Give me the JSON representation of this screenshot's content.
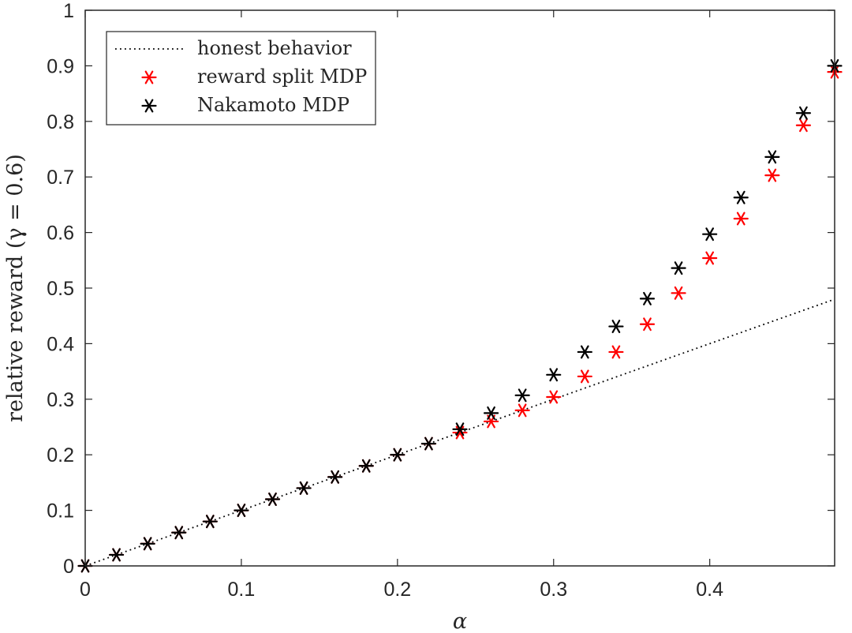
{
  "chart_data": {
    "type": "scatter",
    "xlabel": "α",
    "ylabel": "relative reward (γ = 0.6)",
    "xlim": [
      0,
      0.48
    ],
    "ylim": [
      0,
      1
    ],
    "xticks": [
      0,
      0.1,
      0.2,
      0.3,
      0.4
    ],
    "xtick_labels": [
      "0",
      "0.1",
      "0.2",
      "0.3",
      "0.4"
    ],
    "yticks": [
      0,
      0.1,
      0.2,
      0.3,
      0.4,
      0.5,
      0.6,
      0.7,
      0.8,
      0.9,
      1
    ],
    "ytick_labels": [
      "0",
      "0.1",
      "0.2",
      "0.3",
      "0.4",
      "0.5",
      "0.6",
      "0.7",
      "0.8",
      "0.9",
      "1"
    ],
    "legend_position": "top-left",
    "series": [
      {
        "name": "honest behavior",
        "style": "dotted-line",
        "color": "#000000",
        "x": [
          0,
          0.48
        ],
        "y": [
          0,
          0.48
        ]
      },
      {
        "name": "reward split MDP",
        "style": "asterisk",
        "color": "#ff0000",
        "x": [
          0,
          0.02,
          0.04,
          0.06,
          0.08,
          0.1,
          0.12,
          0.14,
          0.16,
          0.18,
          0.2,
          0.22,
          0.24,
          0.26,
          0.28,
          0.3,
          0.32,
          0.34,
          0.36,
          0.38,
          0.4,
          0.42,
          0.44,
          0.46,
          0.48
        ],
        "y": [
          0,
          0.02,
          0.04,
          0.06,
          0.08,
          0.1,
          0.12,
          0.14,
          0.16,
          0.18,
          0.2,
          0.22,
          0.24,
          0.26,
          0.28,
          0.304,
          0.341,
          0.385,
          0.435,
          0.491,
          0.554,
          0.625,
          0.703,
          0.793,
          0.889
        ]
      },
      {
        "name": "Nakamoto MDP",
        "style": "asterisk",
        "color": "#000000",
        "x": [
          0,
          0.02,
          0.04,
          0.06,
          0.08,
          0.1,
          0.12,
          0.14,
          0.16,
          0.18,
          0.2,
          0.22,
          0.24,
          0.26,
          0.28,
          0.3,
          0.32,
          0.34,
          0.36,
          0.38,
          0.4,
          0.42,
          0.44,
          0.46,
          0.48
        ],
        "y": [
          0,
          0.02,
          0.04,
          0.06,
          0.08,
          0.1,
          0.12,
          0.14,
          0.16,
          0.18,
          0.2,
          0.22,
          0.246,
          0.275,
          0.307,
          0.344,
          0.385,
          0.431,
          0.481,
          0.536,
          0.597,
          0.663,
          0.736,
          0.815,
          0.9
        ]
      }
    ]
  }
}
